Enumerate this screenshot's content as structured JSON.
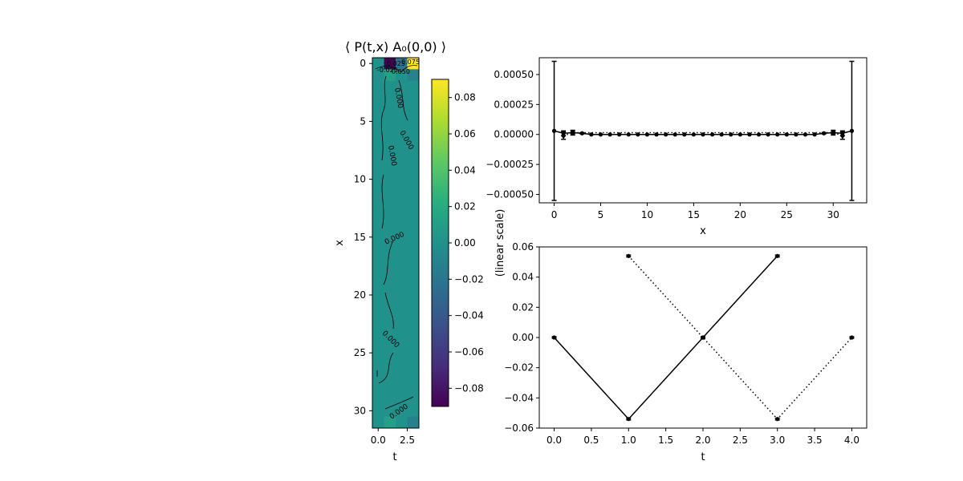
{
  "chart_data": [
    {
      "type": "heatmap",
      "title": "⟨ P(t,x) A₀(0,0) ⟩",
      "xlabel": "t",
      "ylabel": "x",
      "xlim": [
        -0.5,
        3.5
      ],
      "ylim": [
        31.5,
        -0.5
      ],
      "xticks": [
        "0.0",
        "2.5"
      ],
      "yticks": [
        "0",
        "5",
        "10",
        "15",
        "20",
        "25",
        "30"
      ],
      "colorbar": {
        "range": [
          -0.09,
          0.09
        ],
        "ticks": [
          "0.08",
          "0.06",
          "0.04",
          "0.02",
          "0.00",
          "−0.02",
          "−0.04",
          "−0.06",
          "−0.08"
        ]
      },
      "highlight_cells": [
        {
          "t": 1,
          "x": 0,
          "value": -0.09
        },
        {
          "t": 2,
          "x": 0,
          "value": -0.02
        },
        {
          "t": 3,
          "x": 0,
          "value": 0.09
        },
        {
          "t": 1,
          "x": 1,
          "value": 0.012
        },
        {
          "t": 3,
          "x": 1,
          "value": -0.01
        },
        {
          "t": 1,
          "x": 31,
          "value": 0.012
        },
        {
          "t": 3,
          "x": 31,
          "value": -0.012
        }
      ],
      "contour_labels": [
        "0.000",
        "0.000",
        "0.000",
        "0.000",
        "0.000",
        "0.000"
      ],
      "top_contour_labels": [
        "-0.025",
        "0.025",
        "0.050",
        "0.075",
        "0.000"
      ]
    },
    {
      "type": "line",
      "xlabel": "x",
      "ylabel": "",
      "xlim": [
        -1.6,
        33.6
      ],
      "ylim": [
        -0.00057,
        0.00064
      ],
      "xticks": [
        "0",
        "5",
        "10",
        "15",
        "20",
        "25",
        "30"
      ],
      "yticks": [
        "0.00050",
        "0.00025",
        "0.00000",
        "−0.00025",
        "−0.00050"
      ],
      "series": [
        {
          "style": "solid",
          "x": [
            0,
            1,
            2,
            3,
            4,
            5,
            6,
            7,
            8,
            9,
            10,
            11,
            12,
            13,
            14,
            15,
            16,
            17,
            18,
            19,
            20,
            21,
            22,
            23,
            24,
            25,
            26,
            27,
            28,
            29,
            30,
            31,
            32
          ],
          "y": [
            3e-05,
            1e-05,
            1.5e-05,
            1e-05,
            0.0,
            0.0,
            0.0,
            0.0,
            0.0,
            0.0,
            0.0,
            0.0,
            0.0,
            0.0,
            0.0,
            0.0,
            0.0,
            0.0,
            0.0,
            0.0,
            0.0,
            0.0,
            0.0,
            0.0,
            0.0,
            0.0,
            0.0,
            0.0,
            0.0,
            1e-05,
            1.5e-05,
            1e-05,
            3e-05
          ],
          "err": [
            0.00058,
            2e-05,
            1e-05,
            5e-06,
            0,
            0,
            0,
            0,
            0,
            0,
            0,
            0,
            0,
            0,
            0,
            0,
            0,
            0,
            0,
            0,
            0,
            0,
            0,
            0,
            0,
            0,
            0,
            0,
            0,
            5e-06,
            1e-05,
            2e-05,
            0.00058
          ]
        },
        {
          "style": "dotted",
          "x": [
            1,
            2,
            30,
            31
          ],
          "y": [
            -1e-05,
            1.5e-05,
            1.5e-05,
            -1e-05
          ],
          "err": [
            3e-05,
            2e-05,
            2e-05,
            3e-05
          ]
        }
      ]
    },
    {
      "type": "line",
      "xlabel": "t",
      "ylabel": "(linear scale)",
      "xlim": [
        -0.2,
        4.2
      ],
      "ylim": [
        -0.06,
        0.06
      ],
      "xticks": [
        "0.0",
        "0.5",
        "1.0",
        "1.5",
        "2.0",
        "2.5",
        "3.0",
        "3.5",
        "4.0"
      ],
      "yticks": [
        "0.06",
        "0.04",
        "0.02",
        "0.00",
        "−0.02",
        "−0.04",
        "−0.06"
      ],
      "series": [
        {
          "style": "solid",
          "x": [
            0,
            1,
            2,
            3
          ],
          "y": [
            0.0,
            -0.054,
            0.0,
            0.054
          ],
          "err": [
            0.0005,
            0.0006,
            0.0005,
            0.0006
          ]
        },
        {
          "style": "dotted",
          "x": [
            1,
            2,
            3,
            4
          ],
          "y": [
            0.054,
            0.0,
            -0.054,
            0.0
          ],
          "err": [
            0.0006,
            0.0005,
            0.0006,
            0.0005
          ]
        }
      ]
    }
  ]
}
